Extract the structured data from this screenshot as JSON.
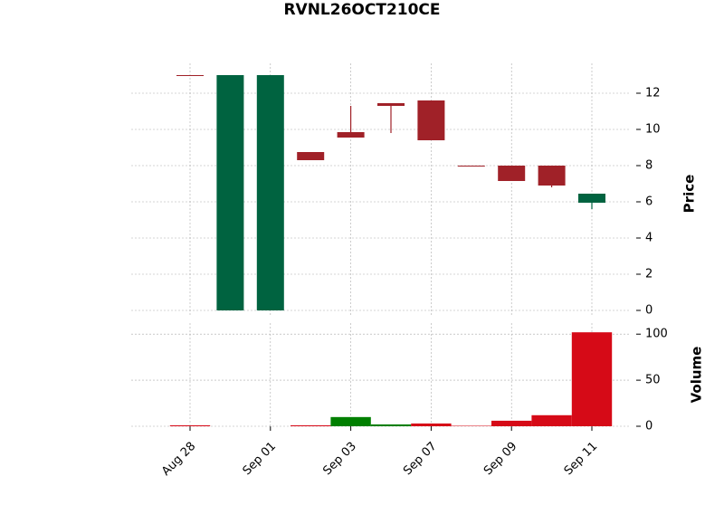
{
  "chart_data": {
    "type": "candlestick",
    "title": "RVNL26OCT210CE",
    "categories": [
      "Aug 28",
      null,
      "Sep 01",
      null,
      "Sep 03",
      null,
      "Sep 07",
      null,
      "Sep 09",
      null,
      "Sep 11"
    ],
    "open": [
      13,
      0,
      0,
      8.75,
      9.85,
      11.45,
      11.6,
      8,
      8,
      8,
      5.95
    ],
    "high": [
      13,
      13,
      13,
      8.75,
      11.3,
      11.45,
      11.6,
      8,
      8,
      8,
      6.45
    ],
    "low": [
      13,
      0,
      0,
      8.3,
      9.55,
      9.8,
      9.4,
      8,
      7.15,
      6.8,
      5.6
    ],
    "close": [
      13,
      13,
      13,
      8.3,
      9.55,
      11.3,
      9.4,
      8,
      7.15,
      6.9,
      6.45
    ],
    "volume": [
      1,
      0,
      0,
      1,
      10,
      2,
      3,
      0.5,
      6,
      12,
      102
    ],
    "ylabel": "Price",
    "volume_label": "Volume",
    "ylim": [
      -0.35,
      13.65
    ],
    "yticks": [
      0,
      2,
      4,
      6,
      8,
      10,
      12
    ],
    "volume_ylim": [
      0,
      112
    ],
    "volume_yticks": [
      0,
      50,
      100
    ],
    "up_color": "#006340",
    "down_color": "#a02128",
    "volume_up_color": "#007f00",
    "volume_down_color": "#d60a17",
    "grid": true
  }
}
